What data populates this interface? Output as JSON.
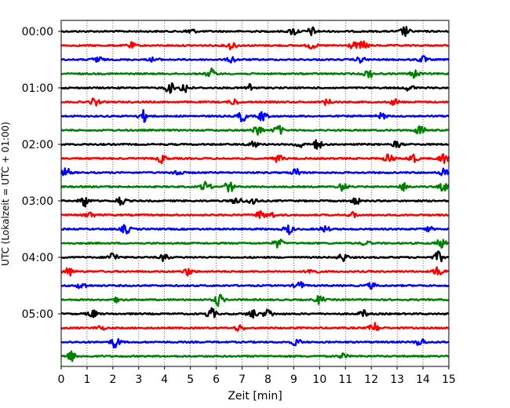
{
  "chart_data": {
    "type": "line",
    "xlabel": "Zeit  [min]",
    "ylabel": "UTC (Lokalzeit = UTC + 01:00)",
    "xlim": [
      0,
      15
    ],
    "x_ticks": [
      "0",
      "1",
      "2",
      "3",
      "4",
      "5",
      "6",
      "7",
      "8",
      "9",
      "10",
      "11",
      "12",
      "13",
      "14",
      "15"
    ],
    "y_ticks": [
      "00:00",
      "01:00",
      "02:00",
      "03:00",
      "04:00",
      "05:00"
    ],
    "grid": "vertical dotted",
    "trace_colors": [
      "#000000",
      "#ff0000",
      "#0000ff",
      "#008000"
    ],
    "trace_interval_min": 15,
    "series": [
      {
        "start": "00:00",
        "color": "#000000",
        "bursts": [
          [
            5.0,
            0.8
          ],
          [
            9.0,
            1.0
          ],
          [
            9.7,
            1.0
          ],
          [
            13.3,
            1.2
          ]
        ]
      },
      {
        "start": "00:15",
        "color": "#ff0000",
        "bursts": [
          [
            2.7,
            0.7
          ],
          [
            6.6,
            1.0
          ],
          [
            9.7,
            0.8
          ],
          [
            11.3,
            0.8
          ],
          [
            11.7,
            1.0
          ]
        ]
      },
      {
        "start": "00:30",
        "color": "#0000ff",
        "bursts": [
          [
            1.4,
            1.0
          ],
          [
            3.6,
            0.6
          ],
          [
            6.6,
            0.7
          ],
          [
            11.6,
            0.7
          ],
          [
            14.0,
            0.8
          ]
        ]
      },
      {
        "start": "00:45",
        "color": "#008000",
        "bursts": [
          [
            5.8,
            1.2
          ],
          [
            11.9,
            1.0
          ],
          [
            13.7,
            1.0
          ]
        ]
      },
      {
        "start": "01:00",
        "color": "#000000",
        "bursts": [
          [
            4.2,
            1.3
          ],
          [
            4.8,
            1.3
          ],
          [
            7.3,
            1.0
          ],
          [
            13.5,
            0.8
          ]
        ]
      },
      {
        "start": "01:15",
        "color": "#ff0000",
        "bursts": [
          [
            1.3,
            0.9
          ],
          [
            6.7,
            0.7
          ],
          [
            10.3,
            0.7
          ],
          [
            12.9,
            0.7
          ]
        ]
      },
      {
        "start": "01:30",
        "color": "#0000ff",
        "bursts": [
          [
            3.2,
            1.4
          ],
          [
            7.0,
            1.3
          ],
          [
            7.8,
            1.2
          ],
          [
            12.4,
            0.7
          ]
        ]
      },
      {
        "start": "01:45",
        "color": "#008000",
        "bursts": [
          [
            7.6,
            1.4
          ],
          [
            8.4,
            1.2
          ],
          [
            13.9,
            1.3
          ]
        ]
      },
      {
        "start": "02:00",
        "color": "#000000",
        "bursts": [
          [
            7.4,
            1.0
          ],
          [
            9.2,
            0.9
          ],
          [
            9.9,
            1.3
          ],
          [
            13.0,
            0.8
          ]
        ]
      },
      {
        "start": "02:15",
        "color": "#ff0000",
        "bursts": [
          [
            3.9,
            1.0
          ],
          [
            8.4,
            0.9
          ],
          [
            12.7,
            1.3
          ],
          [
            13.6,
            1.2
          ],
          [
            14.8,
            1.3
          ]
        ]
      },
      {
        "start": "02:30",
        "color": "#0000ff",
        "bursts": [
          [
            0.2,
            1.0
          ],
          [
            4.5,
            0.8
          ],
          [
            9.1,
            1.0
          ],
          [
            14.8,
            0.9
          ]
        ]
      },
      {
        "start": "02:45",
        "color": "#008000",
        "bursts": [
          [
            5.6,
            1.3
          ],
          [
            6.5,
            1.4
          ],
          [
            10.9,
            1.0
          ],
          [
            13.3,
            1.0
          ],
          [
            14.8,
            1.0
          ]
        ]
      },
      {
        "start": "03:00",
        "color": "#000000",
        "bursts": [
          [
            0.9,
            1.5
          ],
          [
            2.3,
            1.1
          ],
          [
            6.8,
            1.1
          ],
          [
            7.4,
            1.0
          ],
          [
            11.4,
            0.8
          ]
        ]
      },
      {
        "start": "03:15",
        "color": "#ff0000",
        "bursts": [
          [
            1.1,
            0.8
          ],
          [
            7.7,
            0.9
          ],
          [
            8.1,
            0.7
          ],
          [
            11.3,
            0.6
          ]
        ]
      },
      {
        "start": "03:30",
        "color": "#0000ff",
        "bursts": [
          [
            2.5,
            1.1
          ],
          [
            8.8,
            1.2
          ],
          [
            10.2,
            0.8
          ],
          [
            14.2,
            0.6
          ]
        ]
      },
      {
        "start": "03:45",
        "color": "#008000",
        "bursts": [
          [
            8.4,
            1.1
          ],
          [
            11.8,
            0.6
          ],
          [
            14.7,
            1.1
          ]
        ]
      },
      {
        "start": "04:00",
        "color": "#000000",
        "bursts": [
          [
            2.0,
            1.3
          ],
          [
            4.0,
            0.9
          ],
          [
            10.9,
            1.0
          ],
          [
            14.6,
            1.3
          ]
        ]
      },
      {
        "start": "04:15",
        "color": "#ff0000",
        "bursts": [
          [
            0.3,
            1.0
          ],
          [
            4.9,
            0.9
          ],
          [
            9.7,
            1.1
          ],
          [
            14.6,
            1.3
          ]
        ]
      },
      {
        "start": "04:30",
        "color": "#0000ff",
        "bursts": [
          [
            0.8,
            0.9
          ],
          [
            9.2,
            1.1
          ],
          [
            12.0,
            0.7
          ]
        ]
      },
      {
        "start": "04:45",
        "color": "#008000",
        "bursts": [
          [
            2.2,
            0.6
          ],
          [
            6.1,
            1.5
          ],
          [
            10.0,
            1.0
          ]
        ]
      },
      {
        "start": "05:00",
        "color": "#000000",
        "bursts": [
          [
            1.2,
            1.0
          ],
          [
            5.8,
            1.4
          ],
          [
            7.4,
            1.1
          ],
          [
            8.0,
            1.2
          ],
          [
            11.7,
            0.8
          ]
        ]
      },
      {
        "start": "05:15",
        "color": "#ff0000",
        "bursts": [
          [
            1.5,
            0.6
          ],
          [
            6.9,
            0.8
          ],
          [
            12.1,
            1.3
          ]
        ]
      },
      {
        "start": "05:30",
        "color": "#0000ff",
        "bursts": [
          [
            2.1,
            1.4
          ],
          [
            9.1,
            0.9
          ],
          [
            13.9,
            1.0
          ]
        ]
      },
      {
        "start": "05:45",
        "color": "#008000",
        "bursts": [
          [
            0.4,
            1.2
          ],
          [
            10.9,
            0.6
          ]
        ]
      }
    ]
  }
}
